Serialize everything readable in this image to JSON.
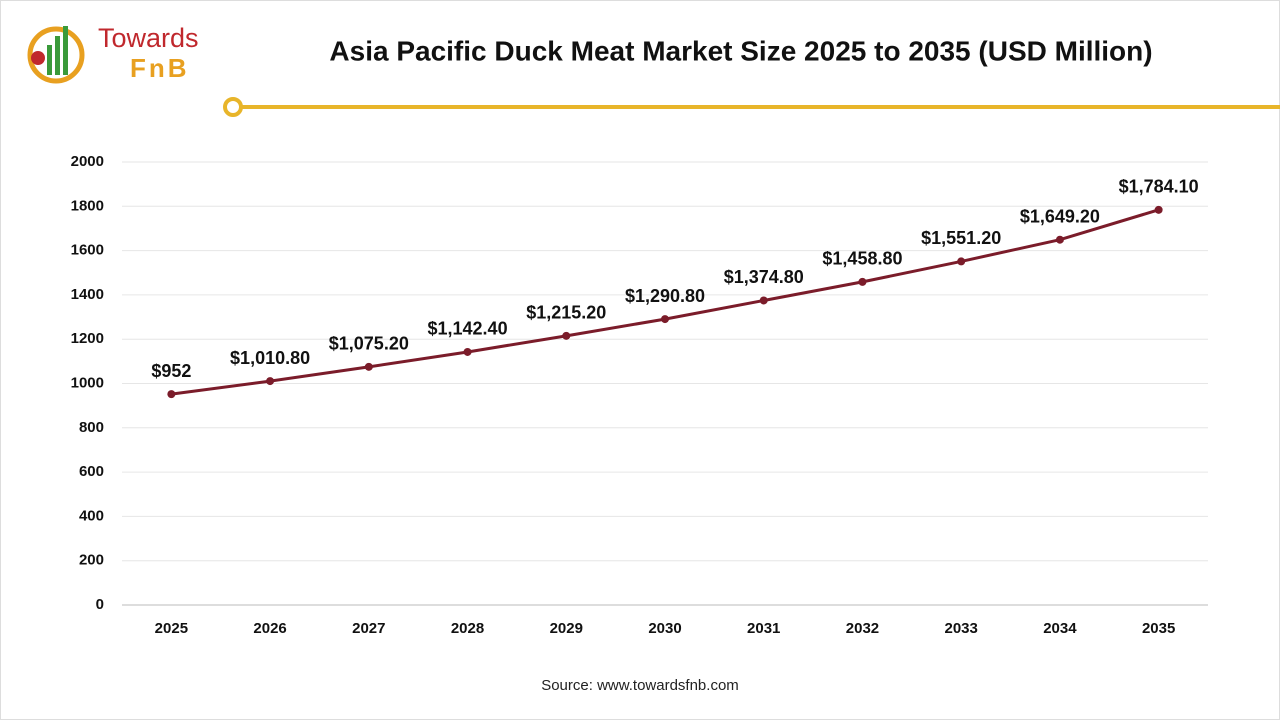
{
  "logo": {
    "word1": "Towards",
    "word2": "FnB"
  },
  "chart_data": {
    "type": "line",
    "title": "Asia Pacific Duck Meat Market Size 2025 to 2035 (USD Million)",
    "categories": [
      "2025",
      "2026",
      "2027",
      "2028",
      "2029",
      "2030",
      "2031",
      "2032",
      "2033",
      "2034",
      "2035"
    ],
    "values": [
      952,
      1010.8,
      1075.2,
      1142.4,
      1215.2,
      1290.8,
      1374.8,
      1458.8,
      1551.2,
      1649.2,
      1784.1
    ],
    "value_labels": [
      "$952",
      "$1,010.80",
      "$1,075.20",
      "$1,142.40",
      "$1,215.20",
      "$1,290.80",
      "$1,374.80",
      "$1,458.80",
      "$1,551.20",
      "$1,649.20",
      "$1,784.10"
    ],
    "color": "#7b1c2a",
    "ylim": [
      0,
      2000
    ],
    "yticks": [
      0,
      200,
      400,
      600,
      800,
      1000,
      1200,
      1400,
      1600,
      1800,
      2000
    ],
    "grid": true,
    "source": "Source: www.towardsfnb.com"
  }
}
